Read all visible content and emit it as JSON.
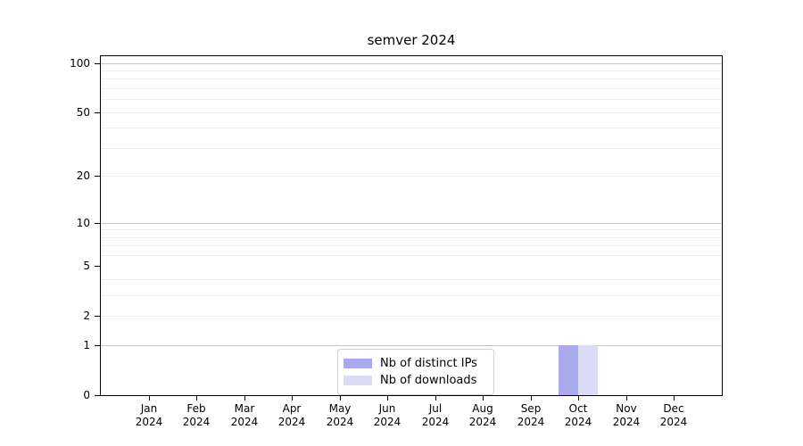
{
  "chart_data": {
    "type": "bar",
    "title": "semver 2024",
    "categories": [
      "Jan",
      "Feb",
      "Mar",
      "Apr",
      "May",
      "Jun",
      "Jul",
      "Aug",
      "Sep",
      "Oct",
      "Nov",
      "Dec"
    ],
    "category_year": "2024",
    "series": [
      {
        "name": "Nb of distinct IPs",
        "color": "#a9a9ee",
        "values": [
          0,
          0,
          0,
          0,
          0,
          0,
          0,
          0,
          0,
          1,
          0,
          0
        ]
      },
      {
        "name": "Nb of downloads",
        "color": "#dcdcf6",
        "values": [
          0,
          0,
          0,
          0,
          0,
          0,
          0,
          0,
          0,
          1,
          0,
          0
        ]
      }
    ],
    "y_axis": {
      "scale": "symlog",
      "max": 110,
      "tick_values": [
        0,
        1,
        2,
        5,
        10,
        20,
        50,
        100
      ],
      "tick_labels": [
        "0",
        "1",
        "2",
        "5",
        "10",
        "20",
        "50",
        "100"
      ],
      "major_gridline_values": [
        1,
        10,
        100
      ],
      "minor_gridline_values": [
        2,
        3,
        4,
        6,
        7,
        8,
        9,
        20,
        30,
        40,
        50,
        60,
        70,
        80,
        90
      ]
    },
    "x_axis": {
      "tick_count": 12
    },
    "legend": {
      "position": "bottom-center"
    },
    "colors": {
      "background": "#ffffff",
      "spine": "#000000",
      "major_grid": "#c6c6c6",
      "minor_grid": "#ededed",
      "legend_border": "#d2d2d2",
      "text": "#000000"
    }
  }
}
